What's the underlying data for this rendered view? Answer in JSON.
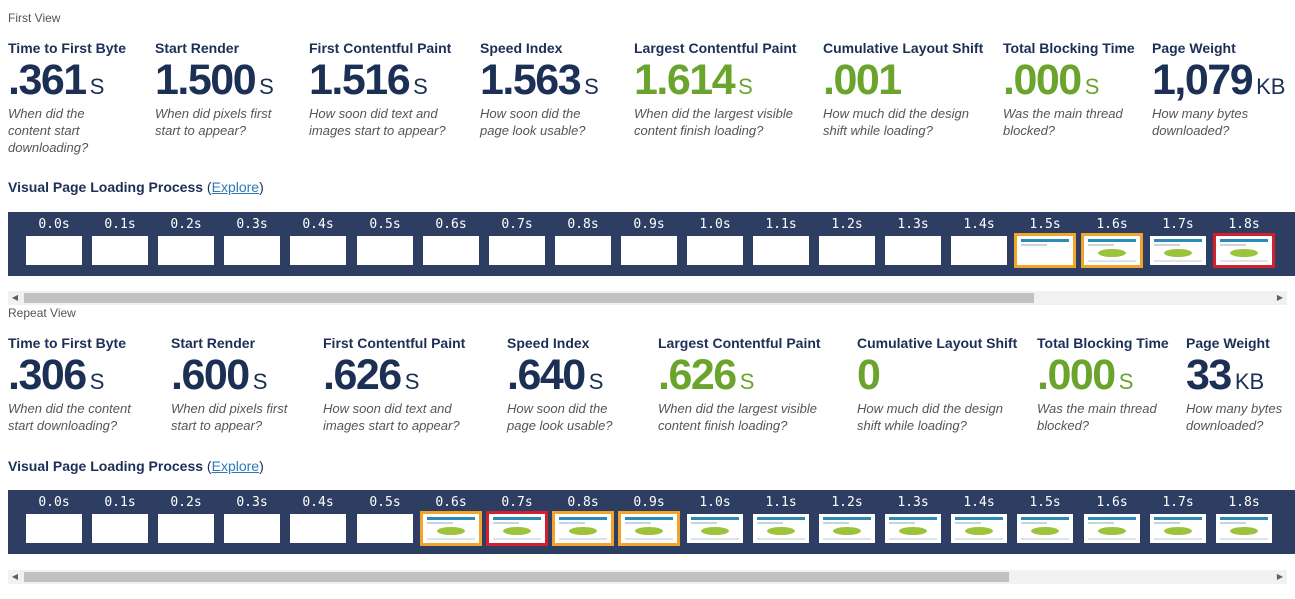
{
  "views": [
    {
      "title": "First View",
      "metrics": [
        {
          "label": "Time to First Byte",
          "value": ".361",
          "unit": "S",
          "desc": [
            "When did the",
            "content start",
            "downloading?"
          ],
          "green": false
        },
        {
          "label": "Start Render",
          "value": "1.500",
          "unit": "S",
          "desc": [
            "When did pixels first",
            "start to appear?"
          ],
          "green": false
        },
        {
          "label": "First Contentful Paint",
          "value": "1.516",
          "unit": "S",
          "desc": [
            "How soon did text and",
            "images start to appear?"
          ],
          "green": false
        },
        {
          "label": "Speed Index",
          "value": "1.563",
          "unit": "S",
          "desc": [
            "How soon did the",
            "page look usable?"
          ],
          "green": false
        },
        {
          "label": "Largest Contentful Paint",
          "value": "1.614",
          "unit": "S",
          "desc": [
            "When did the largest visible",
            "content finish loading?"
          ],
          "green": true
        },
        {
          "label": "Cumulative Layout Shift",
          "value": ".001",
          "unit": "",
          "desc": [
            "How much did the design",
            "shift while loading?"
          ],
          "green": true
        },
        {
          "label": "Total Blocking Time",
          "value": ".000",
          "unit": "S",
          "desc": [
            "Was the main thread",
            "blocked?"
          ],
          "green": true
        },
        {
          "label": "Page Weight",
          "value": "1,079",
          "unit": "KB",
          "desc": [
            "How many bytes",
            "downloaded?"
          ],
          "green": false
        }
      ],
      "vplp_label": "Visual Page Loading Process",
      "explore_label": "Explore",
      "frames": [
        {
          "time": "0.0s",
          "state": "blank",
          "border": ""
        },
        {
          "time": "0.1s",
          "state": "blank",
          "border": ""
        },
        {
          "time": "0.2s",
          "state": "blank",
          "border": ""
        },
        {
          "time": "0.3s",
          "state": "blank",
          "border": ""
        },
        {
          "time": "0.4s",
          "state": "blank",
          "border": ""
        },
        {
          "time": "0.5s",
          "state": "blank",
          "border": ""
        },
        {
          "time": "0.6s",
          "state": "blank",
          "border": ""
        },
        {
          "time": "0.7s",
          "state": "blank",
          "border": ""
        },
        {
          "time": "0.8s",
          "state": "blank",
          "border": ""
        },
        {
          "time": "0.9s",
          "state": "blank",
          "border": ""
        },
        {
          "time": "1.0s",
          "state": "blank",
          "border": ""
        },
        {
          "time": "1.1s",
          "state": "blank",
          "border": ""
        },
        {
          "time": "1.2s",
          "state": "blank",
          "border": ""
        },
        {
          "time": "1.3s",
          "state": "blank",
          "border": ""
        },
        {
          "time": "1.4s",
          "state": "blank",
          "border": ""
        },
        {
          "time": "1.5s",
          "state": "partial",
          "border": "orange"
        },
        {
          "time": "1.6s",
          "state": "page",
          "border": "orange"
        },
        {
          "time": "1.7s",
          "state": "page",
          "border": ""
        },
        {
          "time": "1.8s",
          "state": "page",
          "border": "red"
        }
      ],
      "scroll_thumb_fraction": 0.81
    },
    {
      "title": "Repeat View",
      "metrics": [
        {
          "label": "Time to First Byte",
          "value": ".306",
          "unit": "S",
          "desc": [
            "When did the content",
            "start downloading?"
          ],
          "green": false
        },
        {
          "label": "Start Render",
          "value": ".600",
          "unit": "S",
          "desc": [
            "When did pixels first",
            "start to appear?"
          ],
          "green": false
        },
        {
          "label": "First Contentful Paint",
          "value": ".626",
          "unit": "S",
          "desc": [
            "How soon did text and",
            "images start to appear?"
          ],
          "green": false
        },
        {
          "label": "Speed Index",
          "value": ".640",
          "unit": "S",
          "desc": [
            "How soon did the",
            "page look usable?"
          ],
          "green": false
        },
        {
          "label": "Largest Contentful Paint",
          "value": ".626",
          "unit": "S",
          "desc": [
            "When did the largest visible",
            "content finish loading?"
          ],
          "green": true
        },
        {
          "label": "Cumulative Layout Shift",
          "value": "0",
          "unit": "",
          "desc": [
            "How much did the design",
            "shift while loading?"
          ],
          "green": true
        },
        {
          "label": "Total Blocking Time",
          "value": ".000",
          "unit": "S",
          "desc": [
            "Was the main thread",
            "blocked?"
          ],
          "green": true
        },
        {
          "label": "Page Weight",
          "value": "33",
          "unit": "KB",
          "desc": [
            "How many bytes",
            "downloaded?"
          ],
          "green": false
        }
      ],
      "vplp_label": "Visual Page Loading Process",
      "explore_label": "Explore",
      "frames": [
        {
          "time": "0.0s",
          "state": "blank",
          "border": ""
        },
        {
          "time": "0.1s",
          "state": "blank",
          "border": ""
        },
        {
          "time": "0.2s",
          "state": "blank",
          "border": ""
        },
        {
          "time": "0.3s",
          "state": "blank",
          "border": ""
        },
        {
          "time": "0.4s",
          "state": "blank",
          "border": ""
        },
        {
          "time": "0.5s",
          "state": "blank",
          "border": ""
        },
        {
          "time": "0.6s",
          "state": "page",
          "border": "orange"
        },
        {
          "time": "0.7s",
          "state": "page",
          "border": "red"
        },
        {
          "time": "0.8s",
          "state": "page",
          "border": "orange"
        },
        {
          "time": "0.9s",
          "state": "page",
          "border": "orange"
        },
        {
          "time": "1.0s",
          "state": "page",
          "border": ""
        },
        {
          "time": "1.1s",
          "state": "page",
          "border": ""
        },
        {
          "time": "1.2s",
          "state": "page",
          "border": ""
        },
        {
          "time": "1.3s",
          "state": "page",
          "border": ""
        },
        {
          "time": "1.4s",
          "state": "page",
          "border": ""
        },
        {
          "time": "1.5s",
          "state": "page",
          "border": ""
        },
        {
          "time": "1.6s",
          "state": "page",
          "border": ""
        },
        {
          "time": "1.7s",
          "state": "page",
          "border": ""
        },
        {
          "time": "1.8s",
          "state": "page",
          "border": ""
        }
      ],
      "scroll_thumb_fraction": 0.79
    }
  ],
  "colors": {
    "navy": "#1c2f55",
    "green": "#6aa42d",
    "strip": "#2e3e63",
    "orange": "#f2a32a",
    "red": "#d3202e",
    "link": "#2a7ab8"
  },
  "icons": {
    "scroll_left": "triangle-left-icon",
    "scroll_right": "triangle-right-icon"
  }
}
